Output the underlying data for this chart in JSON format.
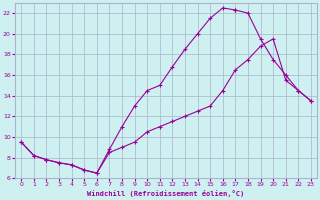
{
  "xlabel": "Windchill (Refroidissement éolien,°C)",
  "xlim": [
    -0.5,
    23.5
  ],
  "ylim": [
    6,
    23
  ],
  "yticks": [
    6,
    8,
    10,
    12,
    14,
    16,
    18,
    20,
    22
  ],
  "xticks": [
    0,
    1,
    2,
    3,
    4,
    5,
    6,
    7,
    8,
    9,
    10,
    11,
    12,
    13,
    14,
    15,
    16,
    17,
    18,
    19,
    20,
    21,
    22,
    23
  ],
  "bg_color": "#cef0f0",
  "grid_color": "#aab4cc",
  "line_color": "#990099",
  "curve1_x": [
    0,
    1,
    2,
    3,
    4,
    5,
    6,
    7,
    8,
    9,
    10,
    11,
    12,
    13,
    14,
    15,
    16,
    17
  ],
  "curve1_y": [
    9.5,
    8.2,
    7.8,
    7.5,
    7.3,
    6.8,
    6.5,
    8.8,
    11.0,
    13.0,
    14.5,
    15.0,
    16.8,
    18.5,
    20.0,
    21.5,
    22.5,
    22.3
  ],
  "curve2_x": [
    17,
    18,
    19,
    20,
    21,
    22,
    23
  ],
  "curve2_y": [
    22.3,
    22.0,
    19.5,
    17.5,
    16.0,
    14.5,
    13.5
  ],
  "curve3_x": [
    0,
    1,
    2,
    3,
    4,
    5,
    6,
    7,
    8,
    9,
    10,
    11,
    12,
    13,
    14,
    15,
    16,
    17,
    18,
    19,
    20,
    21,
    22,
    23
  ],
  "curve3_y": [
    9.5,
    8.2,
    7.8,
    7.5,
    7.3,
    6.8,
    6.5,
    8.5,
    9.0,
    9.5,
    10.5,
    11.0,
    11.5,
    12.0,
    12.5,
    13.0,
    14.5,
    16.5,
    17.5,
    18.8,
    19.5,
    15.5,
    14.5,
    13.5
  ],
  "marker": "+"
}
